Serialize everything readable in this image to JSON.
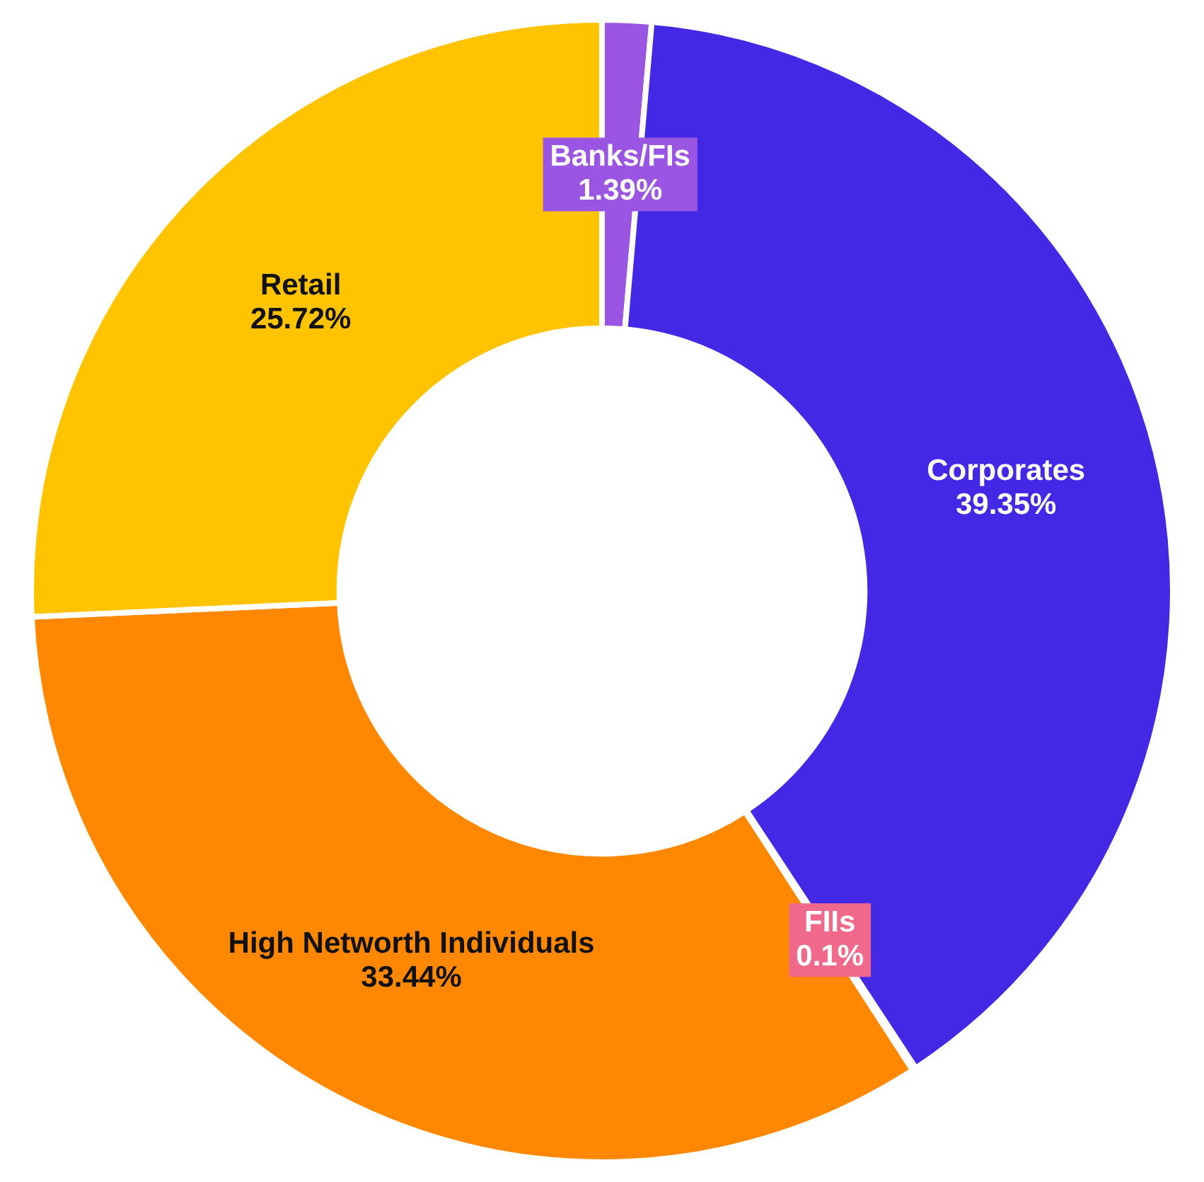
{
  "chart_data": {
    "type": "donut",
    "categories": [
      "Banks/FIs",
      "Corporates",
      "FIIs",
      "High Networth Individuals",
      "Retail"
    ],
    "values": [
      1.39,
      39.35,
      0.1,
      33.44,
      25.72
    ],
    "colors": [
      "#9b55e3",
      "#4329e6",
      "#f0698a",
      "#ff8800",
      "#ffc300"
    ],
    "value_labels": [
      "1.39%",
      "39.35%",
      "0.1%",
      "33.44%",
      "25.72%"
    ],
    "legend": false
  }
}
